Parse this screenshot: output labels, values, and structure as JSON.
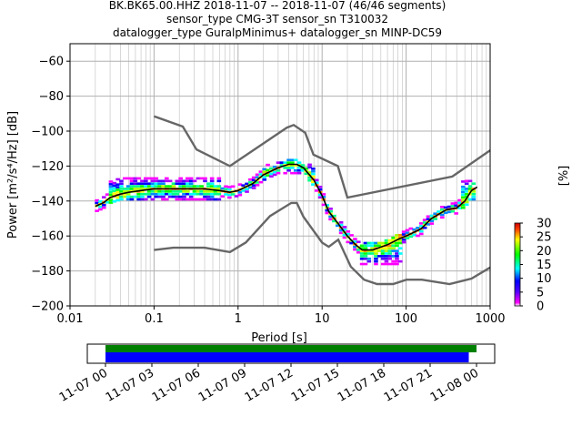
{
  "title_lines": [
    "BK.BK65.00.HHZ   2018-11-07 -- 2018-11-07  (46/46 segments)",
    "sensor_type CMG-3T sensor_sn T310032",
    "datalogger_type GuralpMinimus+ datalogger_sn MINP-DC59"
  ],
  "colorbar": {
    "label": "[%]",
    "ticks": [
      "0",
      "5",
      "10",
      "15",
      "20",
      "25",
      "30"
    ],
    "range": [
      0,
      30
    ]
  },
  "timeline": {
    "tick_labels": [
      "11-07 00",
      "11-07 03",
      "11-07 06",
      "11-07 09",
      "11-07 12",
      "11-07 15",
      "11-07 18",
      "11-07 21",
      "11-08 00"
    ],
    "green_bar": {
      "start_hours": 0.0,
      "end_hours": 24.0,
      "color": "#008000"
    },
    "blue_bar": {
      "start_hours": 0.0,
      "end_hours": 23.5,
      "color": "#0000ff"
    }
  },
  "chart_data": {
    "type": "heatmap",
    "xlabel": "Period [s]",
    "ylabel": "Power [m²/s⁴/Hz] [dB]",
    "xscale": "log",
    "xlim": [
      0.01,
      1000
    ],
    "ylim": [
      -200,
      -50
    ],
    "xticks": [
      0.01,
      0.1,
      1,
      10,
      100,
      1000
    ],
    "xtick_labels": [
      "0.01",
      "0.1",
      "1",
      "10",
      "100",
      "1000"
    ],
    "yticks": [
      -200,
      -180,
      -160,
      -140,
      -120,
      -100,
      -80,
      -60
    ],
    "ytick_labels": [
      "−200",
      "−180",
      "−160",
      "−140",
      "−120",
      "−100",
      "−80",
      "−60"
    ],
    "grid": true,
    "series": [
      {
        "kind": "noise_model_high",
        "color": "#666666",
        "x": [
          0.1,
          0.22,
          0.32,
          0.8,
          3.8,
          4.6,
          6.3,
          7.9,
          15.4,
          20,
          354.8,
          1000
        ],
        "y": [
          -91.5,
          -97.4,
          -110.5,
          -120,
          -98,
          -96.5,
          -101,
          -113.5,
          -120,
          -138,
          -126,
          -111
        ]
      },
      {
        "kind": "noise_model_low",
        "color": "#666666",
        "x": [
          0.1,
          0.17,
          0.4,
          0.8,
          1.24,
          2.4,
          4.3,
          5.0,
          6.0,
          10.0,
          12.0,
          15.6,
          21.9,
          31.6,
          45,
          70,
          101,
          154,
          328,
          600,
          1000
        ],
        "y": [
          -168,
          -166.7,
          -166.7,
          -169.2,
          -163.7,
          -148.6,
          -141.1,
          -141.1,
          -149,
          -163.8,
          -166.2,
          -162.1,
          -177.5,
          -185,
          -187.5,
          -187.5,
          -185,
          -185,
          -187.5,
          -184.4,
          -178
        ]
      },
      {
        "kind": "mode",
        "color": "#000000",
        "x": [
          0.02,
          0.025,
          0.03,
          0.04,
          0.05,
          0.07,
          0.1,
          0.15,
          0.2,
          0.3,
          0.4,
          0.6,
          0.8,
          1.0,
          1.5,
          2.0,
          3.0,
          4.0,
          5.0,
          6.0,
          8.0,
          10.0,
          12.0,
          15.0,
          20.0,
          25.0,
          30.0,
          40.0,
          60.0,
          80.0,
          100.0,
          150.0,
          200.0,
          300.0,
          400.0,
          500.0,
          600.0,
          700.0
        ],
        "y": [
          -143,
          -141,
          -138,
          -136,
          -135,
          -134,
          -133,
          -133,
          -133,
          -133,
          -133,
          -134,
          -135,
          -134,
          -130,
          -125,
          -121,
          -119,
          -119,
          -121,
          -128,
          -137,
          -146,
          -152,
          -160,
          -165,
          -168,
          -168,
          -165,
          -162,
          -160,
          -156,
          -150,
          -145,
          -144,
          -140,
          -134,
          -132
        ]
      }
    ],
    "density_bands": [
      {
        "x0": 0.028,
        "x1": 0.6,
        "y_top": -127,
        "y_bot": -139
      },
      {
        "x0": 2.0,
        "x1": 8.0,
        "y_top": -119,
        "y_bot": -124
      },
      {
        "x0": 28.0,
        "x1": 90.0,
        "y_top": -163,
        "y_bot": -176
      },
      {
        "x0": 450.0,
        "x1": 700.0,
        "y_top": -128,
        "y_bot": -142
      }
    ]
  }
}
